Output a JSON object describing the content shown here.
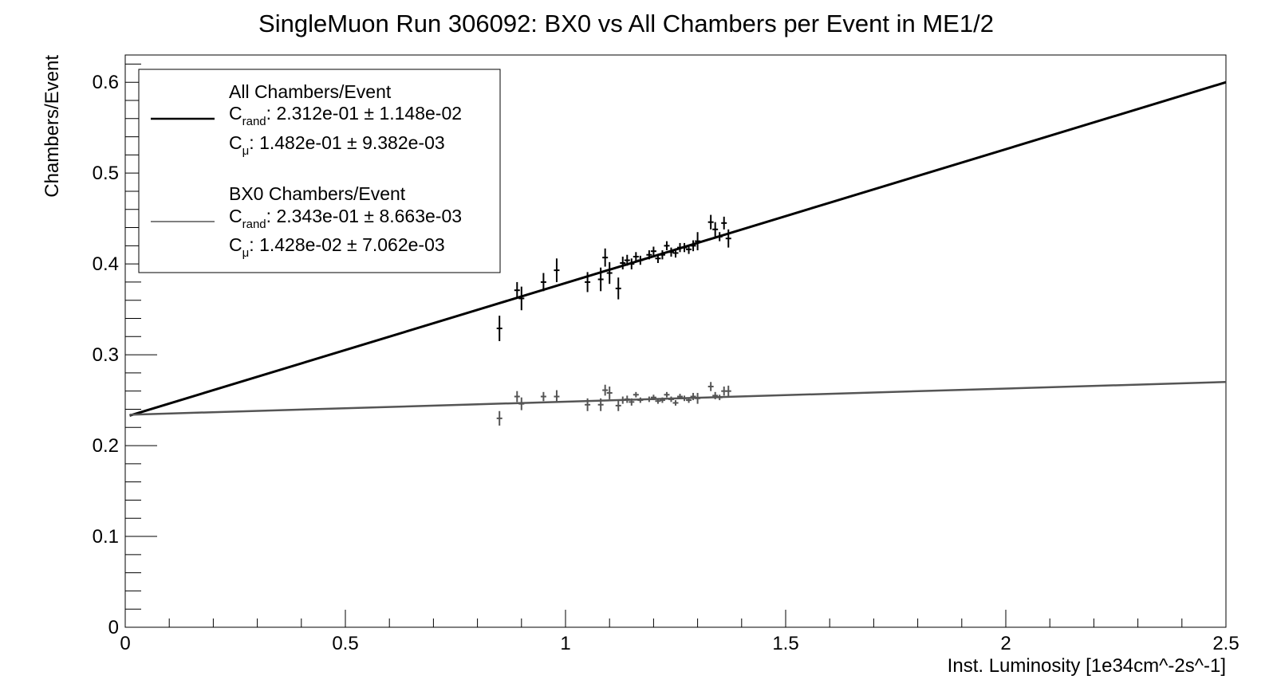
{
  "chart_data": {
    "type": "scatter",
    "title": "SingleMuon Run 306092: BX0 vs All Chambers per Event in ME1/2",
    "xlabel": "Inst. Luminosity [1e34cm^-2s^-1]",
    "ylabel": "Chambers/Event",
    "xlim": [
      0,
      2.5
    ],
    "ylim": [
      0,
      0.63
    ],
    "x_ticks": [
      0,
      0.5,
      1,
      1.5,
      2,
      2.5
    ],
    "x_tick_labels": [
      "0",
      "0.5",
      "1",
      "1.5",
      "2",
      "2.5"
    ],
    "y_ticks": [
      0,
      0.1,
      0.2,
      0.3,
      0.4,
      0.5,
      0.6
    ],
    "y_tick_labels": [
      "0",
      "0.1",
      "0.2",
      "0.3",
      "0.4",
      "0.5",
      "0.6"
    ],
    "grid": false,
    "legend_position": "top-left",
    "series": [
      {
        "name": "All Chambers/Event",
        "color": "#000000",
        "fit": {
          "c_rand": {
            "label": "C",
            "subscript": "rand",
            "value": "2.312e-01",
            "pm": "±",
            "error": "1.148e-02"
          },
          "c_mu": {
            "label": "C",
            "subscript": "μ",
            "value": "1.482e-01",
            "pm": "±",
            "error": "9.382e-03"
          },
          "line": {
            "x": [
              0.01,
              2.5
            ],
            "y": [
              0.233,
              0.6
            ]
          }
        },
        "points": [
          {
            "x": 0.85,
            "y": 0.329,
            "e": 0.014
          },
          {
            "x": 0.89,
            "y": 0.371,
            "e": 0.009
          },
          {
            "x": 0.9,
            "y": 0.362,
            "e": 0.013
          },
          {
            "x": 0.95,
            "y": 0.38,
            "e": 0.01
          },
          {
            "x": 0.98,
            "y": 0.393,
            "e": 0.013
          },
          {
            "x": 1.05,
            "y": 0.38,
            "e": 0.011
          },
          {
            "x": 1.08,
            "y": 0.383,
            "e": 0.013
          },
          {
            "x": 1.09,
            "y": 0.407,
            "e": 0.01
          },
          {
            "x": 1.1,
            "y": 0.39,
            "e": 0.012
          },
          {
            "x": 1.12,
            "y": 0.373,
            "e": 0.012
          },
          {
            "x": 1.13,
            "y": 0.401,
            "e": 0.007
          },
          {
            "x": 1.14,
            "y": 0.404,
            "e": 0.006
          },
          {
            "x": 1.15,
            "y": 0.4,
            "e": 0.006
          },
          {
            "x": 1.16,
            "y": 0.408,
            "e": 0.005
          },
          {
            "x": 1.17,
            "y": 0.404,
            "e": 0.005
          },
          {
            "x": 1.19,
            "y": 0.41,
            "e": 0.005
          },
          {
            "x": 1.2,
            "y": 0.414,
            "e": 0.005
          },
          {
            "x": 1.21,
            "y": 0.406,
            "e": 0.005
          },
          {
            "x": 1.22,
            "y": 0.41,
            "e": 0.005
          },
          {
            "x": 1.23,
            "y": 0.42,
            "e": 0.005
          },
          {
            "x": 1.24,
            "y": 0.413,
            "e": 0.005
          },
          {
            "x": 1.25,
            "y": 0.412,
            "e": 0.005
          },
          {
            "x": 1.26,
            "y": 0.418,
            "e": 0.005
          },
          {
            "x": 1.27,
            "y": 0.418,
            "e": 0.005
          },
          {
            "x": 1.28,
            "y": 0.416,
            "e": 0.005
          },
          {
            "x": 1.29,
            "y": 0.42,
            "e": 0.006
          },
          {
            "x": 1.3,
            "y": 0.425,
            "e": 0.01
          },
          {
            "x": 1.33,
            "y": 0.446,
            "e": 0.008
          },
          {
            "x": 1.34,
            "y": 0.438,
            "e": 0.008
          },
          {
            "x": 1.35,
            "y": 0.43,
            "e": 0.005
          },
          {
            "x": 1.36,
            "y": 0.445,
            "e": 0.007
          },
          {
            "x": 1.37,
            "y": 0.428,
            "e": 0.01
          }
        ]
      },
      {
        "name": "BX0 Chambers/Event",
        "color": "#555555",
        "fit": {
          "c_rand": {
            "label": "C",
            "subscript": "rand",
            "value": "2.343e-01",
            "pm": "±",
            "error": "8.663e-03"
          },
          "c_mu": {
            "label": "C",
            "subscript": "μ",
            "value": "1.428e-02 ",
            "pm": "±",
            "error": "7.062e-03"
          },
          "line": {
            "x": [
              0.01,
              2.5
            ],
            "y": [
              0.234,
              0.27
            ]
          }
        },
        "points": [
          {
            "x": 0.85,
            "y": 0.23,
            "e": 0.008
          },
          {
            "x": 0.89,
            "y": 0.254,
            "e": 0.006
          },
          {
            "x": 0.9,
            "y": 0.246,
            "e": 0.007
          },
          {
            "x": 0.95,
            "y": 0.254,
            "e": 0.005
          },
          {
            "x": 0.98,
            "y": 0.254,
            "e": 0.007
          },
          {
            "x": 1.05,
            "y": 0.245,
            "e": 0.007
          },
          {
            "x": 1.08,
            "y": 0.245,
            "e": 0.007
          },
          {
            "x": 1.09,
            "y": 0.261,
            "e": 0.006
          },
          {
            "x": 1.1,
            "y": 0.258,
            "e": 0.007
          },
          {
            "x": 1.12,
            "y": 0.244,
            "e": 0.006
          },
          {
            "x": 1.13,
            "y": 0.25,
            "e": 0.004
          },
          {
            "x": 1.14,
            "y": 0.251,
            "e": 0.004
          },
          {
            "x": 1.15,
            "y": 0.248,
            "e": 0.004
          },
          {
            "x": 1.16,
            "y": 0.256,
            "e": 0.003
          },
          {
            "x": 1.17,
            "y": 0.25,
            "e": 0.003
          },
          {
            "x": 1.19,
            "y": 0.251,
            "e": 0.003
          },
          {
            "x": 1.2,
            "y": 0.253,
            "e": 0.003
          },
          {
            "x": 1.21,
            "y": 0.249,
            "e": 0.003
          },
          {
            "x": 1.22,
            "y": 0.25,
            "e": 0.003
          },
          {
            "x": 1.23,
            "y": 0.256,
            "e": 0.003
          },
          {
            "x": 1.24,
            "y": 0.251,
            "e": 0.003
          },
          {
            "x": 1.25,
            "y": 0.247,
            "e": 0.003
          },
          {
            "x": 1.26,
            "y": 0.254,
            "e": 0.003
          },
          {
            "x": 1.27,
            "y": 0.252,
            "e": 0.003
          },
          {
            "x": 1.28,
            "y": 0.25,
            "e": 0.003
          },
          {
            "x": 1.29,
            "y": 0.254,
            "e": 0.004
          },
          {
            "x": 1.3,
            "y": 0.252,
            "e": 0.006
          },
          {
            "x": 1.33,
            "y": 0.265,
            "e": 0.005
          },
          {
            "x": 1.34,
            "y": 0.255,
            "e": 0.004
          },
          {
            "x": 1.35,
            "y": 0.253,
            "e": 0.003
          },
          {
            "x": 1.36,
            "y": 0.26,
            "e": 0.005
          },
          {
            "x": 1.37,
            "y": 0.26,
            "e": 0.006
          }
        ]
      }
    ]
  }
}
